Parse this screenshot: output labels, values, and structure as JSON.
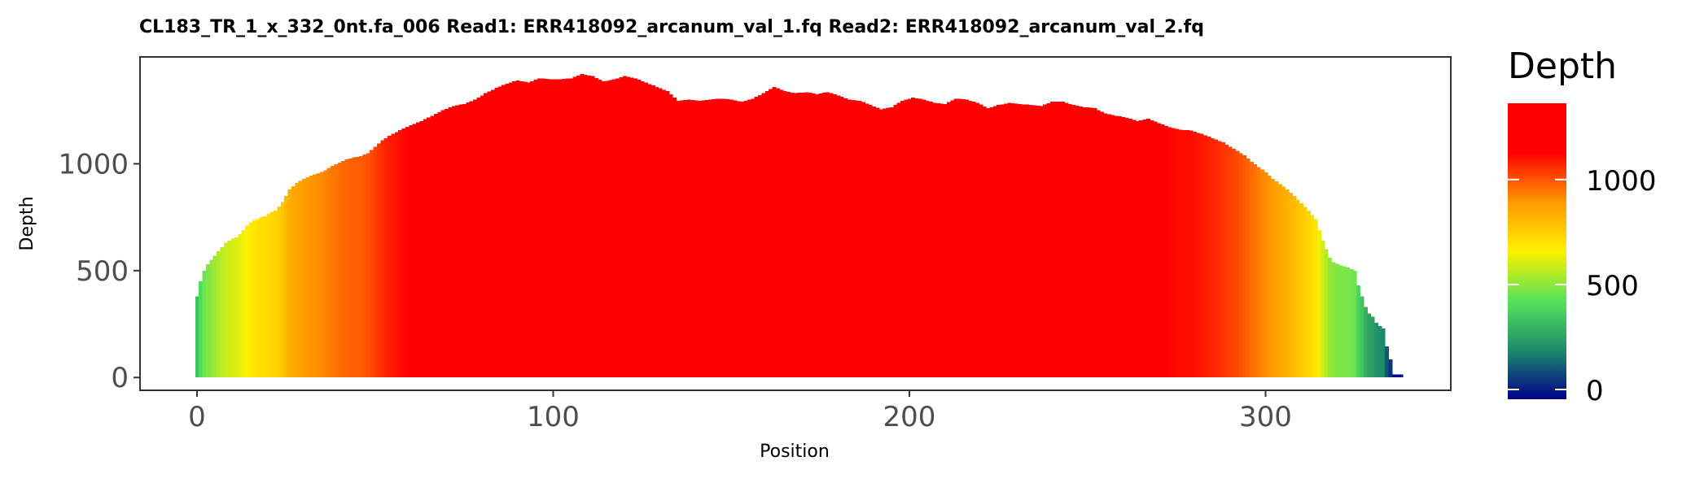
{
  "chart_data": {
    "type": "bar",
    "title": "CL183_TR_1_x_332_0nt.fa_006   Read1: ERR418092_arcanum_val_1.fq   Read2: ERR418092_arcanum_val_2.fq",
    "xlabel": "Position",
    "ylabel": "Depth",
    "xlim": [
      -16,
      352
    ],
    "ylim": [
      -60,
      1500
    ],
    "x_ticks": [
      0,
      100,
      200,
      300
    ],
    "y_ticks": [
      0,
      500,
      1000
    ],
    "grid": false,
    "legend": {
      "title": "Depth",
      "type": "colorbar",
      "range": [
        0,
        1410
      ],
      "ticks": [
        0,
        500,
        1000
      ],
      "placement": "right",
      "colors": [
        "#00008B",
        "#1E8C6A",
        "#55E35A",
        "#FFF000",
        "#FF9900",
        "#FF0000",
        "#FF0000"
      ]
    },
    "depth_profile": [
      [
        0,
        380
      ],
      [
        1,
        450
      ],
      [
        2,
        500
      ],
      [
        3,
        530
      ],
      [
        4,
        550
      ],
      [
        5,
        570
      ],
      [
        6,
        590
      ],
      [
        7,
        610
      ],
      [
        8,
        630
      ],
      [
        9,
        640
      ],
      [
        10,
        650
      ],
      [
        11,
        655
      ],
      [
        12,
        670
      ],
      [
        13,
        690
      ],
      [
        14,
        710
      ],
      [
        15,
        725
      ],
      [
        16,
        735
      ],
      [
        17,
        740
      ],
      [
        18,
        750
      ],
      [
        19,
        755
      ],
      [
        20,
        765
      ],
      [
        21,
        775
      ],
      [
        22,
        780
      ],
      [
        23,
        800
      ],
      [
        24,
        820
      ],
      [
        25,
        850
      ],
      [
        26,
        880
      ],
      [
        28,
        910
      ],
      [
        30,
        930
      ],
      [
        32,
        945
      ],
      [
        34,
        955
      ],
      [
        36,
        970
      ],
      [
        38,
        990
      ],
      [
        40,
        1005
      ],
      [
        42,
        1020
      ],
      [
        44,
        1030
      ],
      [
        46,
        1035
      ],
      [
        48,
        1050
      ],
      [
        50,
        1080
      ],
      [
        52,
        1110
      ],
      [
        55,
        1140
      ],
      [
        58,
        1165
      ],
      [
        60,
        1180
      ],
      [
        63,
        1200
      ],
      [
        66,
        1225
      ],
      [
        69,
        1250
      ],
      [
        72,
        1270
      ],
      [
        75,
        1280
      ],
      [
        78,
        1300
      ],
      [
        81,
        1330
      ],
      [
        84,
        1355
      ],
      [
        87,
        1375
      ],
      [
        90,
        1390
      ],
      [
        93,
        1380
      ],
      [
        96,
        1400
      ],
      [
        99,
        1395
      ],
      [
        102,
        1395
      ],
      [
        105,
        1400
      ],
      [
        108,
        1420
      ],
      [
        111,
        1410
      ],
      [
        114,
        1385
      ],
      [
        117,
        1395
      ],
      [
        120,
        1410
      ],
      [
        123,
        1400
      ],
      [
        126,
        1380
      ],
      [
        129,
        1360
      ],
      [
        132,
        1340
      ],
      [
        135,
        1295
      ],
      [
        138,
        1300
      ],
      [
        141,
        1295
      ],
      [
        144,
        1300
      ],
      [
        147,
        1305
      ],
      [
        150,
        1300
      ],
      [
        153,
        1290
      ],
      [
        156,
        1305
      ],
      [
        159,
        1330
      ],
      [
        162,
        1360
      ],
      [
        165,
        1340
      ],
      [
        168,
        1330
      ],
      [
        171,
        1335
      ],
      [
        174,
        1325
      ],
      [
        177,
        1335
      ],
      [
        180,
        1320
      ],
      [
        183,
        1300
      ],
      [
        186,
        1295
      ],
      [
        189,
        1275
      ],
      [
        192,
        1255
      ],
      [
        195,
        1265
      ],
      [
        198,
        1295
      ],
      [
        201,
        1310
      ],
      [
        204,
        1300
      ],
      [
        207,
        1285
      ],
      [
        210,
        1280
      ],
      [
        213,
        1305
      ],
      [
        216,
        1300
      ],
      [
        219,
        1285
      ],
      [
        222,
        1260
      ],
      [
        225,
        1275
      ],
      [
        228,
        1285
      ],
      [
        231,
        1280
      ],
      [
        234,
        1275
      ],
      [
        237,
        1270
      ],
      [
        240,
        1290
      ],
      [
        243,
        1290
      ],
      [
        246,
        1275
      ],
      [
        249,
        1265
      ],
      [
        252,
        1260
      ],
      [
        255,
        1235
      ],
      [
        258,
        1225
      ],
      [
        261,
        1215
      ],
      [
        264,
        1200
      ],
      [
        267,
        1210
      ],
      [
        270,
        1190
      ],
      [
        273,
        1170
      ],
      [
        276,
        1160
      ],
      [
        279,
        1155
      ],
      [
        282,
        1140
      ],
      [
        285,
        1120
      ],
      [
        288,
        1100
      ],
      [
        290,
        1080
      ],
      [
        292,
        1060
      ],
      [
        294,
        1040
      ],
      [
        296,
        1010
      ],
      [
        298,
        985
      ],
      [
        300,
        960
      ],
      [
        302,
        930
      ],
      [
        304,
        905
      ],
      [
        306,
        880
      ],
      [
        308,
        850
      ],
      [
        310,
        815
      ],
      [
        312,
        780
      ],
      [
        314,
        740
      ],
      [
        315,
        690
      ],
      [
        316,
        640
      ],
      [
        317,
        600
      ],
      [
        318,
        560
      ],
      [
        319,
        540
      ],
      [
        321,
        525
      ],
      [
        323,
        515
      ],
      [
        325,
        500
      ],
      [
        326,
        430
      ],
      [
        327,
        380
      ],
      [
        328,
        330
      ],
      [
        329,
        300
      ],
      [
        330,
        285
      ],
      [
        331,
        255
      ],
      [
        332,
        240
      ],
      [
        333,
        230
      ],
      [
        334,
        145
      ],
      [
        335,
        85
      ],
      [
        336,
        15
      ],
      [
        337,
        15
      ],
      [
        338,
        15
      ]
    ],
    "x_range_end": 339
  }
}
